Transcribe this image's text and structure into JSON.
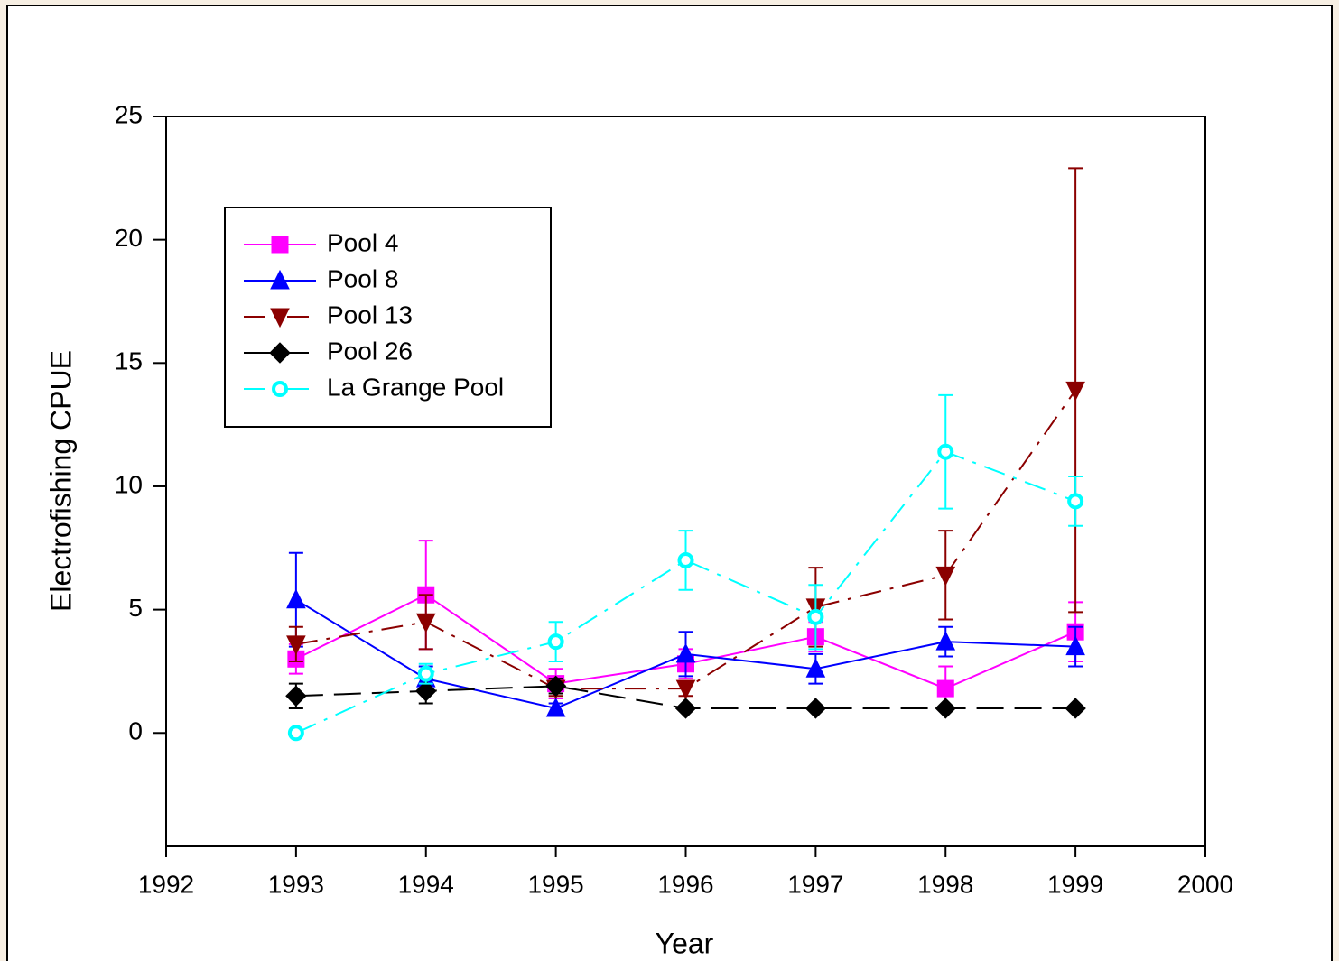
{
  "chart_data": {
    "type": "line",
    "x_label": "Year",
    "y_label": "Electrofishing CPUE",
    "x": [
      1993,
      1994,
      1995,
      1996,
      1997,
      1998,
      1999
    ],
    "xlim": [
      1992,
      2000
    ],
    "xticks": [
      1992,
      1993,
      1994,
      1995,
      1996,
      1997,
      1998,
      1999,
      2000
    ],
    "ylim": [
      -4.6,
      25
    ],
    "yticks": [
      0,
      5,
      10,
      15,
      20,
      25
    ],
    "grid": false,
    "legend": "upper left",
    "series": [
      {
        "name": "Pool 4",
        "color": "#ff00ff",
        "marker": "square",
        "line_style": "solid",
        "values": [
          3.0,
          5.6,
          2.0,
          2.8,
          3.9,
          1.8,
          4.1
        ],
        "errors": [
          0.6,
          2.2,
          0.6,
          0.6,
          0.6,
          0.9,
          1.2
        ]
      },
      {
        "name": "Pool 8",
        "color": "#0000ff",
        "marker": "triangle-up",
        "line_style": "solid",
        "values": [
          5.4,
          2.2,
          1.0,
          3.2,
          2.6,
          3.7,
          3.5
        ],
        "errors": [
          1.9,
          0.5,
          0.2,
          0.9,
          0.6,
          0.6,
          0.8
        ]
      },
      {
        "name": "Pool 13",
        "color": "#8b0000",
        "marker": "triangle-down",
        "line_style": "dash-dot",
        "values": [
          3.6,
          4.5,
          1.8,
          1.8,
          5.1,
          6.4,
          13.9
        ],
        "errors": [
          0.7,
          1.1,
          0.3,
          0.3,
          1.6,
          1.8,
          9.0
        ]
      },
      {
        "name": "Pool 26",
        "color": "#000000",
        "marker": "diamond",
        "line_style": "dash",
        "values": [
          1.5,
          1.7,
          1.9,
          1.0,
          1.0,
          1.0,
          1.0
        ],
        "errors": [
          0.5,
          0.5,
          0.3,
          0,
          0,
          0,
          0
        ]
      },
      {
        "name": "La Grange Pool",
        "color": "#00ffff",
        "marker": "circle",
        "line_style": "dash-dot",
        "values": [
          0.0,
          2.4,
          3.7,
          7.0,
          4.7,
          11.4,
          9.4
        ],
        "errors": [
          0,
          0.4,
          0.8,
          1.2,
          1.3,
          2.3,
          1.0
        ]
      }
    ]
  }
}
